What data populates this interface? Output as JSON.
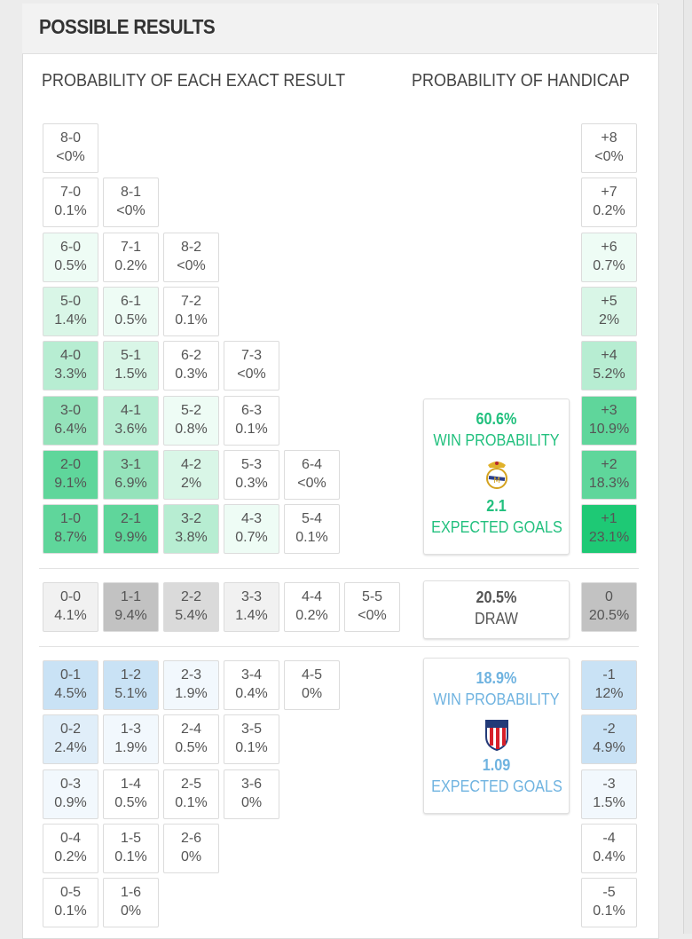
{
  "title": "POSSIBLE RESULTS",
  "headers": {
    "exact": "PROBABILITY OF EACH EXACT RESULT",
    "handicap": "PROBABILITY OF HANDICAP"
  },
  "colors": {
    "home": [
      "#ffffff",
      "#eefcf5",
      "#d9f6e7",
      "#b7edd2",
      "#95e3bb",
      "#5fd69b",
      "#1ec975"
    ],
    "away": [
      "#ffffff",
      "#f2f8fd",
      "#e0eef9",
      "#c9e2f5"
    ],
    "draw": [
      "#ffffff",
      "#f1f1f1",
      "#dadada",
      "#c2c2c2"
    ],
    "home_text": "#22c07e",
    "away_text": "#6fb3e0"
  },
  "home_rows": [
    [
      {
        "score": "8-0",
        "pct": "<0%"
      }
    ],
    [
      {
        "score": "7-0",
        "pct": "0.1%"
      },
      {
        "score": "8-1",
        "pct": "<0%"
      }
    ],
    [
      {
        "score": "6-0",
        "pct": "0.5%"
      },
      {
        "score": "7-1",
        "pct": "0.2%"
      },
      {
        "score": "8-2",
        "pct": "<0%"
      }
    ],
    [
      {
        "score": "5-0",
        "pct": "1.4%"
      },
      {
        "score": "6-1",
        "pct": "0.5%"
      },
      {
        "score": "7-2",
        "pct": "0.1%"
      }
    ],
    [
      {
        "score": "4-0",
        "pct": "3.3%"
      },
      {
        "score": "5-1",
        "pct": "1.5%"
      },
      {
        "score": "6-2",
        "pct": "0.3%"
      },
      {
        "score": "7-3",
        "pct": "<0%"
      }
    ],
    [
      {
        "score": "3-0",
        "pct": "6.4%"
      },
      {
        "score": "4-1",
        "pct": "3.6%"
      },
      {
        "score": "5-2",
        "pct": "0.8%"
      },
      {
        "score": "6-3",
        "pct": "0.1%"
      }
    ],
    [
      {
        "score": "2-0",
        "pct": "9.1%"
      },
      {
        "score": "3-1",
        "pct": "6.9%"
      },
      {
        "score": "4-2",
        "pct": "2%"
      },
      {
        "score": "5-3",
        "pct": "0.3%"
      },
      {
        "score": "6-4",
        "pct": "<0%"
      }
    ],
    [
      {
        "score": "1-0",
        "pct": "8.7%"
      },
      {
        "score": "2-1",
        "pct": "9.9%"
      },
      {
        "score": "3-2",
        "pct": "3.8%"
      },
      {
        "score": "4-3",
        "pct": "0.7%"
      },
      {
        "score": "5-4",
        "pct": "0.1%"
      }
    ]
  ],
  "draw_row": [
    {
      "score": "0-0",
      "pct": "4.1%"
    },
    {
      "score": "1-1",
      "pct": "9.4%"
    },
    {
      "score": "2-2",
      "pct": "5.4%"
    },
    {
      "score": "3-3",
      "pct": "1.4%"
    },
    {
      "score": "4-4",
      "pct": "0.2%"
    },
    {
      "score": "5-5",
      "pct": "<0%"
    }
  ],
  "away_rows": [
    [
      {
        "score": "0-1",
        "pct": "4.5%"
      },
      {
        "score": "1-2",
        "pct": "5.1%"
      },
      {
        "score": "2-3",
        "pct": "1.9%"
      },
      {
        "score": "3-4",
        "pct": "0.4%"
      },
      {
        "score": "4-5",
        "pct": "0%"
      }
    ],
    [
      {
        "score": "0-2",
        "pct": "2.4%"
      },
      {
        "score": "1-3",
        "pct": "1.9%"
      },
      {
        "score": "2-4",
        "pct": "0.5%"
      },
      {
        "score": "3-5",
        "pct": "0.1%"
      }
    ],
    [
      {
        "score": "0-3",
        "pct": "0.9%"
      },
      {
        "score": "1-4",
        "pct": "0.5%"
      },
      {
        "score": "2-5",
        "pct": "0.1%"
      },
      {
        "score": "3-6",
        "pct": "0%"
      }
    ],
    [
      {
        "score": "0-4",
        "pct": "0.2%"
      },
      {
        "score": "1-5",
        "pct": "0.1%"
      },
      {
        "score": "2-6",
        "pct": "0%"
      }
    ],
    [
      {
        "score": "0-5",
        "pct": "0.1%"
      },
      {
        "score": "1-6",
        "pct": "0%"
      }
    ]
  ],
  "handicap_home": [
    {
      "label": "+8",
      "pct": "<0%"
    },
    {
      "label": "+7",
      "pct": "0.2%"
    },
    {
      "label": "+6",
      "pct": "0.7%"
    },
    {
      "label": "+5",
      "pct": "2%"
    },
    {
      "label": "+4",
      "pct": "5.2%"
    },
    {
      "label": "+3",
      "pct": "10.9%"
    },
    {
      "label": "+2",
      "pct": "18.3%"
    },
    {
      "label": "+1",
      "pct": "23.1%"
    }
  ],
  "handicap_draw": {
    "label": "0",
    "pct": "20.5%"
  },
  "handicap_away": [
    {
      "label": "-1",
      "pct": "12%"
    },
    {
      "label": "-2",
      "pct": "4.9%"
    },
    {
      "label": "-3",
      "pct": "1.5%"
    },
    {
      "label": "-4",
      "pct": "0.4%"
    },
    {
      "label": "-5",
      "pct": "0.1%"
    }
  ],
  "home_summary": {
    "win_pct": "60.6%",
    "win_label": "WIN PROBABILITY",
    "crest": "real-madrid-crest-icon",
    "xg": "2.1",
    "xg_label": "EXPECTED GOALS"
  },
  "draw_summary": {
    "pct": "20.5%",
    "label": "DRAW"
  },
  "away_summary": {
    "win_pct": "18.9%",
    "win_label": "WIN PROBABILITY",
    "crest": "atletico-madrid-crest-icon",
    "xg": "1.09",
    "xg_label": "EXPECTED GOALS"
  }
}
